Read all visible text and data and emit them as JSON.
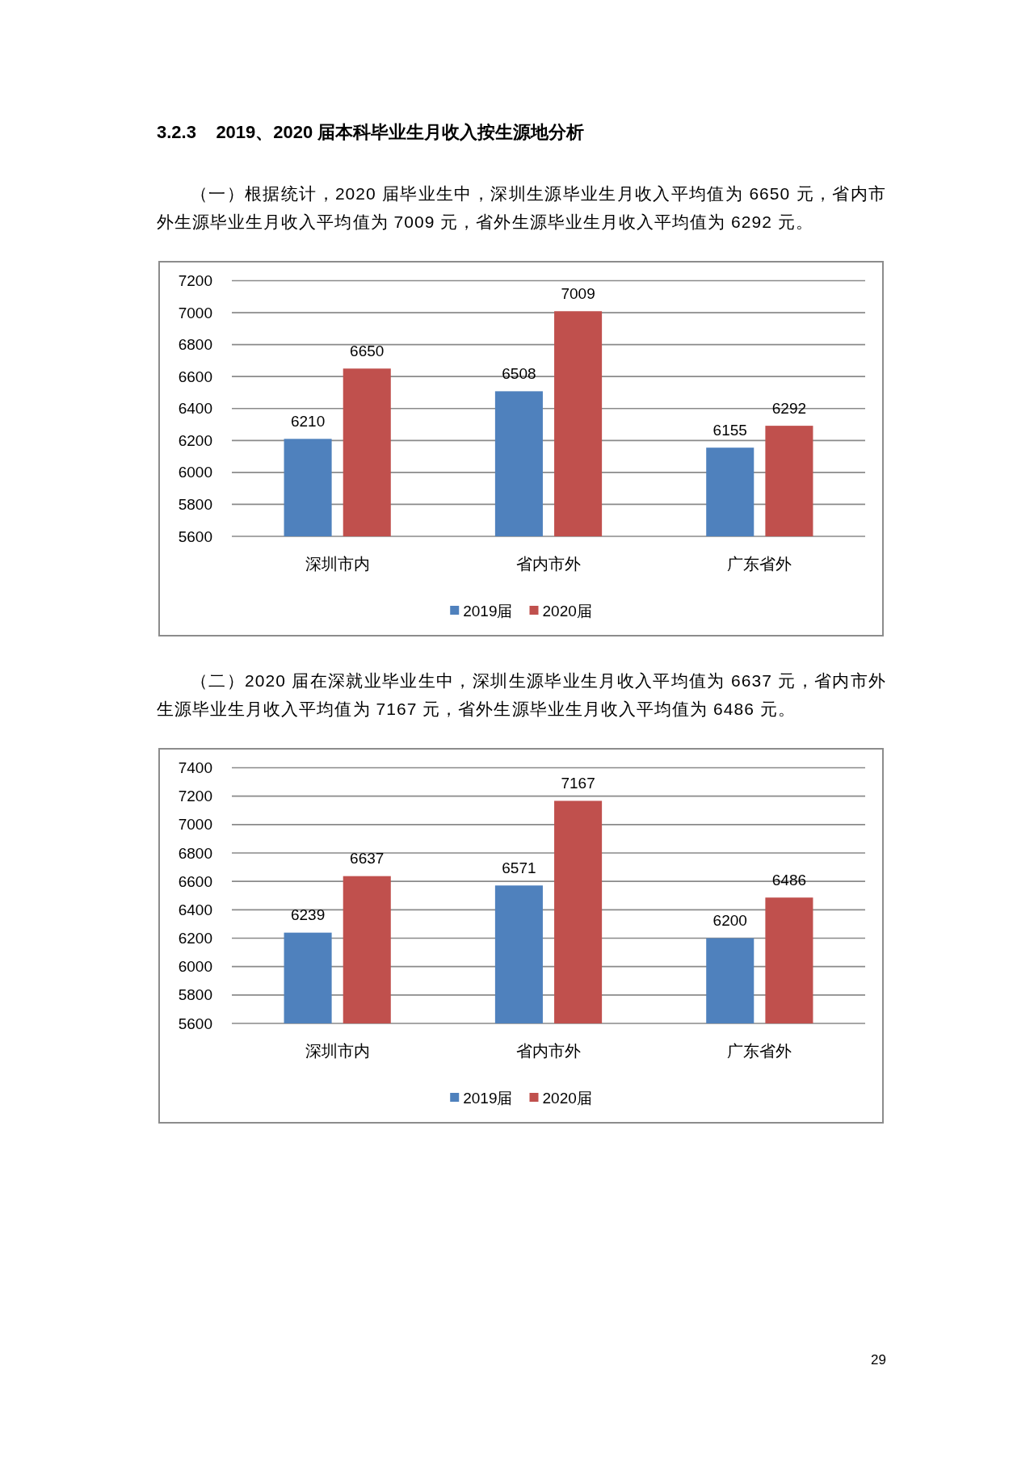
{
  "chart_data": [
    {
      "type": "bar",
      "title": "3.2.3    2019、2020 届本科毕业生月收入按生源地分析",
      "subtitle": "（一）根据统计，2020 届毕业生中，深圳生源毕业生月收入平均值为 6650 元，省内市外生源毕业生月收入平均值为 7009 元，省外生源毕业生月收入平均值为 6292 元。",
      "categories": [
        "深圳市内",
        "省内市外",
        "广东省外"
      ],
      "series": [
        {
          "name": "2019届",
          "color": "#4f81bd",
          "values": [
            6210,
            6508,
            6155
          ]
        },
        {
          "name": "2020届",
          "color": "#c0504d",
          "values": [
            6650,
            7009,
            6292
          ]
        }
      ],
      "ylim": [
        5600,
        7200
      ],
      "yticks": [
        5600,
        5800,
        6000,
        6200,
        6400,
        6600,
        6800,
        7000,
        7200
      ],
      "grid": "y",
      "legend": "bottom",
      "data_labels": true
    },
    {
      "type": "bar",
      "subtitle": "（二）2020 届在深就业毕业生中，深圳生源毕业生月收入平均值为 6637 元，省内市外生源毕业生月收入平均值为 7167 元，省外生源毕业生月收入平均值为 6486 元。",
      "categories": [
        "深圳市内",
        "省内市外",
        "广东省外"
      ],
      "series": [
        {
          "name": "2019届",
          "color": "#4f81bd",
          "values": [
            6239,
            6571,
            6200
          ]
        },
        {
          "name": "2020届",
          "color": "#c0504d",
          "values": [
            6637,
            7167,
            6486
          ]
        }
      ],
      "ylim": [
        5600,
        7400
      ],
      "yticks": [
        5600,
        5800,
        6000,
        6200,
        6400,
        6600,
        6800,
        7000,
        7200,
        7400
      ],
      "grid": "y",
      "legend": "bottom",
      "data_labels": true,
      "annotations": [
        "29"
      ]
    }
  ]
}
